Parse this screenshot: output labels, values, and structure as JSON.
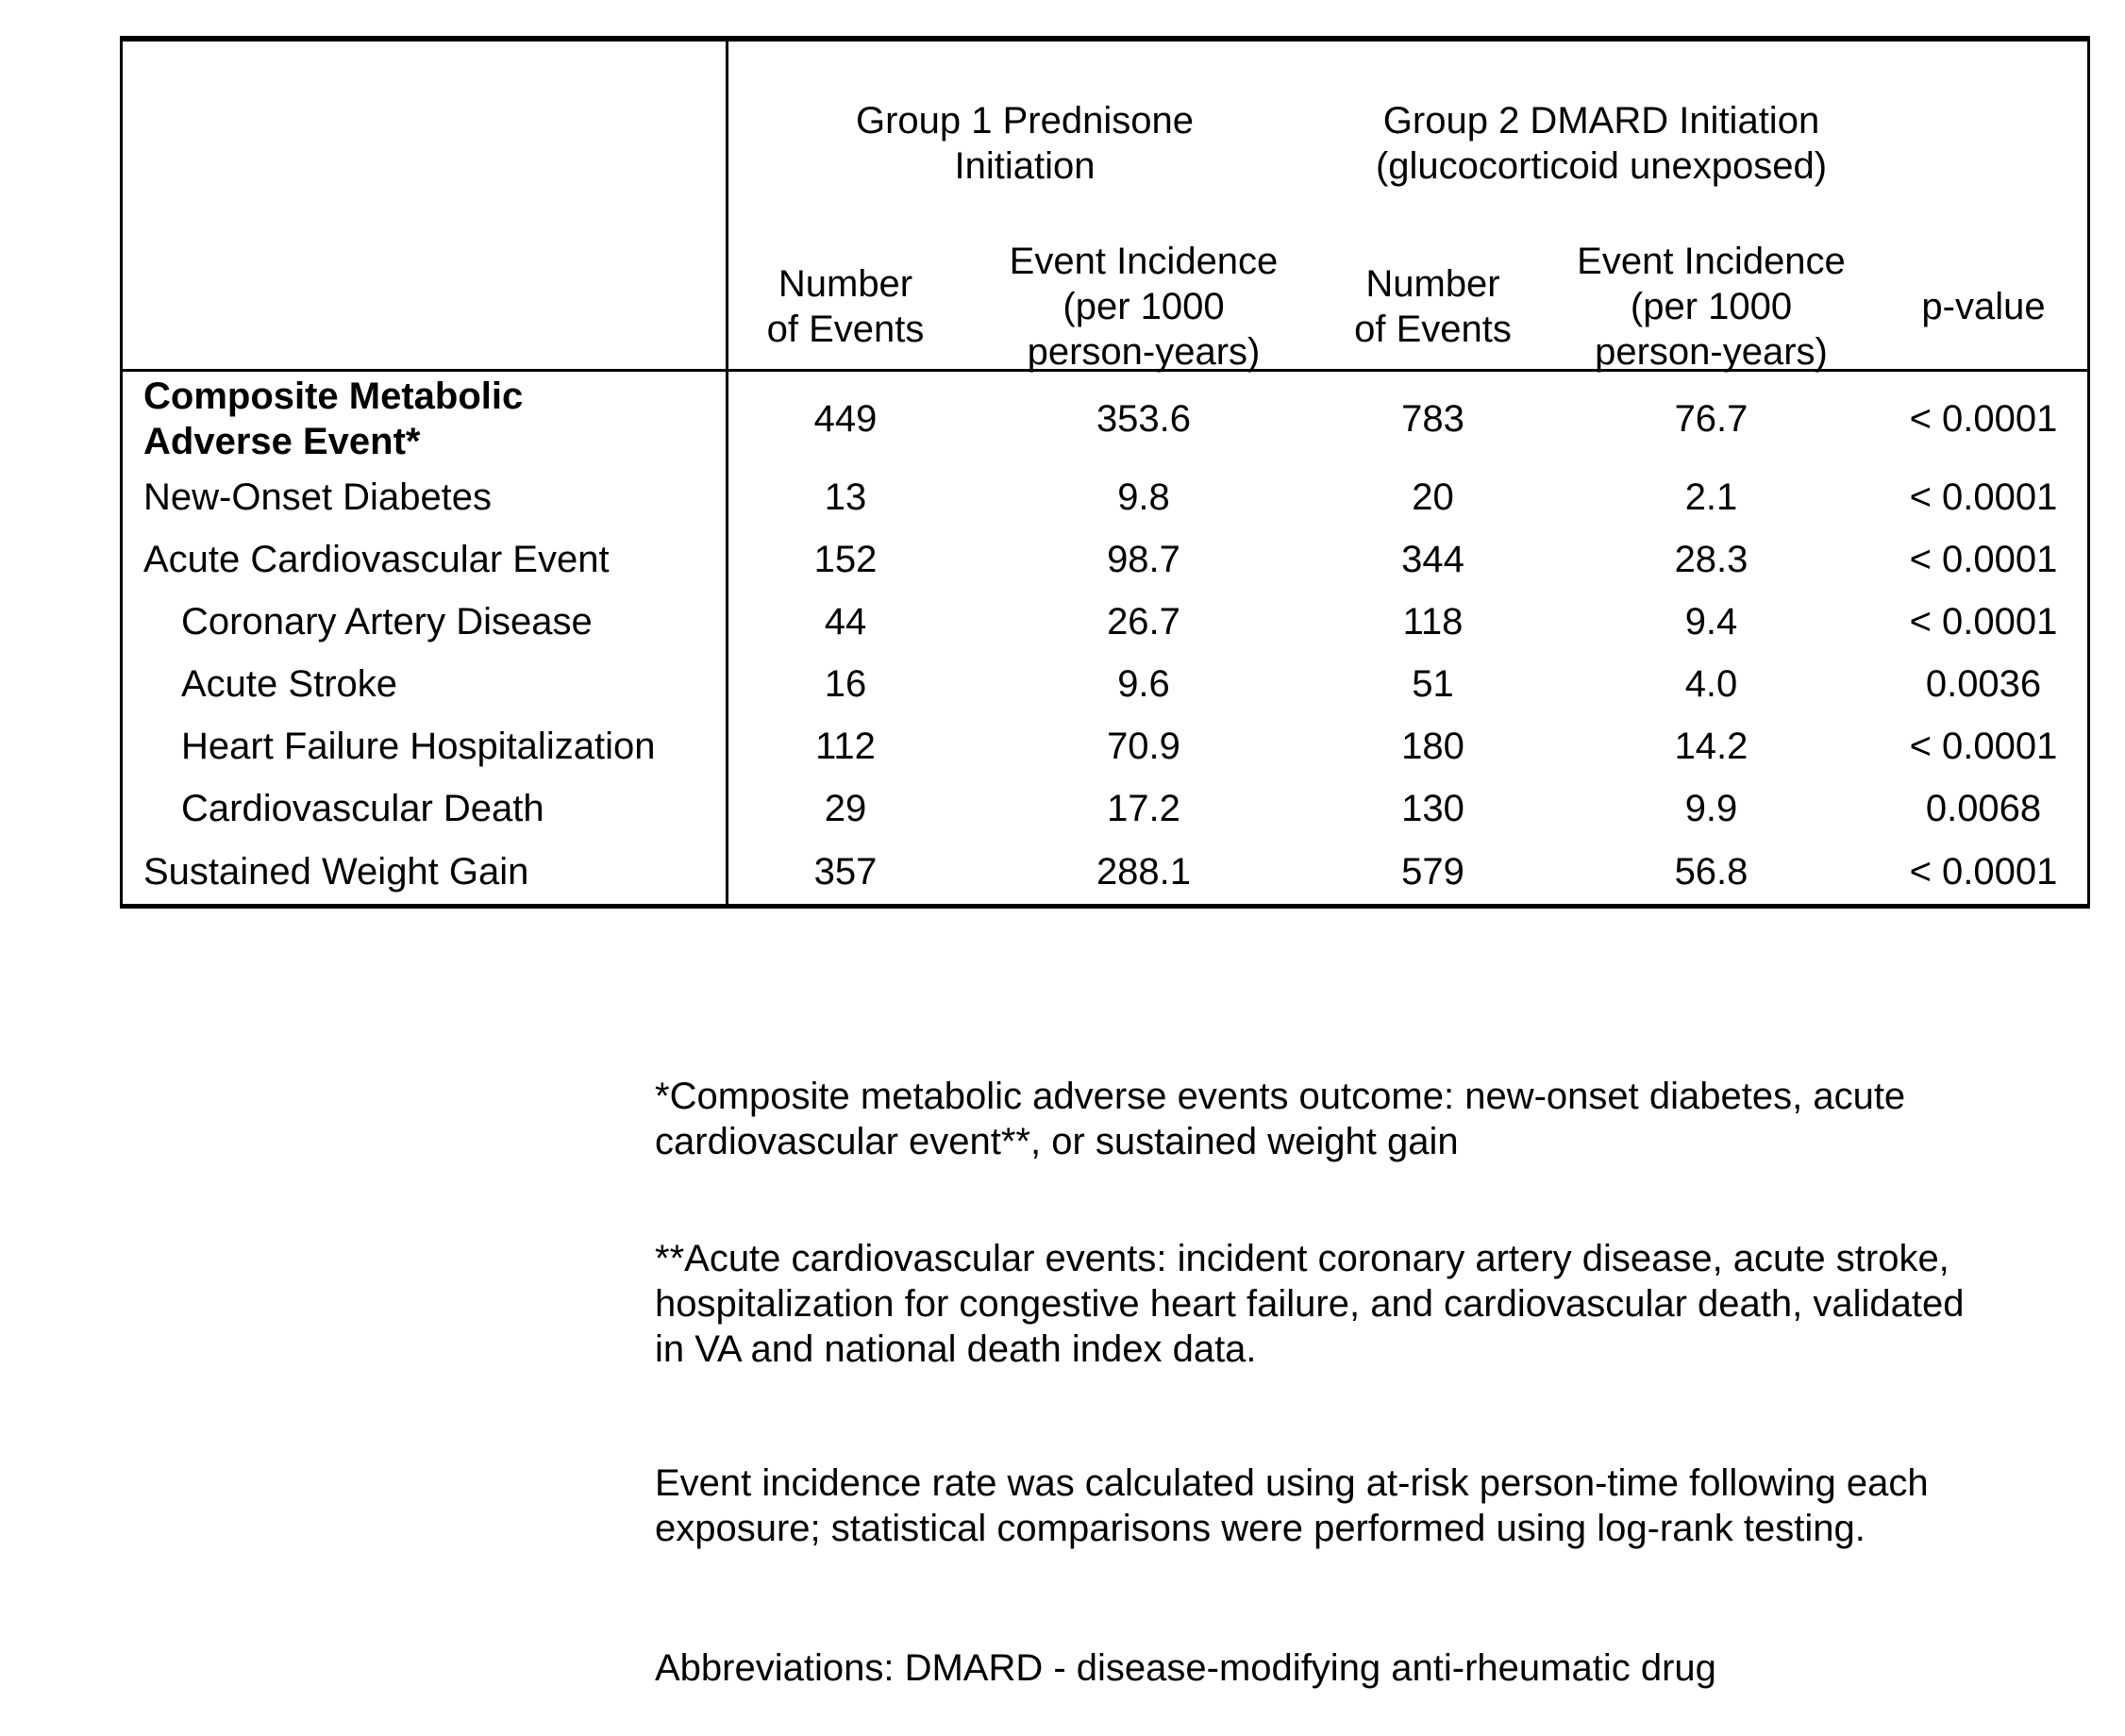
{
  "table": {
    "group_headers": {
      "group1": "Group 1 Prednisone\nInitiation",
      "group2": "Group 2 DMARD Initiation\n(glucocorticoid unexposed)"
    },
    "column_headers": {
      "g1_number": "Number\nof Events",
      "g1_incidence": "Event Incidence\n(per 1000\nperson-years)",
      "g2_number": "Number\nof Events",
      "g2_incidence": "Event Incidence\n(per 1000\nperson-years)",
      "p_value": "p-value"
    },
    "rows": [
      {
        "label": "Composite Metabolic\nAdverse Event*",
        "g1_events": "449",
        "g1_incidence": "353.6",
        "g2_events": "783",
        "g2_incidence": "76.7",
        "p_value": "< 0.0001"
      },
      {
        "label": "New-Onset Diabetes",
        "g1_events": "13",
        "g1_incidence": "9.8",
        "g2_events": "20",
        "g2_incidence": "2.1",
        "p_value": "< 0.0001"
      },
      {
        "label": "Acute Cardiovascular Event",
        "g1_events": "152",
        "g1_incidence": "98.7",
        "g2_events": "344",
        "g2_incidence": "28.3",
        "p_value": "< 0.0001"
      },
      {
        "label": "Coronary Artery Disease",
        "g1_events": "44",
        "g1_incidence": "26.7",
        "g2_events": "118",
        "g2_incidence": "9.4",
        "p_value": "< 0.0001"
      },
      {
        "label": "Acute Stroke",
        "g1_events": "16",
        "g1_incidence": "9.6",
        "g2_events": "51",
        "g2_incidence": "4.0",
        "p_value": "0.0036"
      },
      {
        "label": "Heart Failure Hospitalization",
        "g1_events": "112",
        "g1_incidence": "70.9",
        "g2_events": "180",
        "g2_incidence": "14.2",
        "p_value": "< 0.0001"
      },
      {
        "label": "Cardiovascular Death",
        "g1_events": "29",
        "g1_incidence": "17.2",
        "g2_events": "130",
        "g2_incidence": "9.9",
        "p_value": "0.0068"
      },
      {
        "label": "Sustained Weight Gain",
        "g1_events": "357",
        "g1_incidence": "288.1",
        "g2_events": "579",
        "g2_incidence": "56.8",
        "p_value": "< 0.0001"
      }
    ]
  },
  "footnotes": {
    "composite": "*Composite metabolic adverse events outcome: new-onset diabetes, acute\ncardiovascular event**, or sustained weight gain",
    "acute_cv": "**Acute cardiovascular events: incident coronary artery disease, acute stroke,\nhospitalization for congestive heart failure, and cardiovascular death, validated\nin VA and national death index data.",
    "incidence_method": "Event incidence rate was calculated using at-risk person-time following each\nexposure; statistical comparisons were performed using log-rank testing.",
    "abbreviations": "Abbreviations: DMARD - disease-modifying anti-rheumatic drug"
  }
}
